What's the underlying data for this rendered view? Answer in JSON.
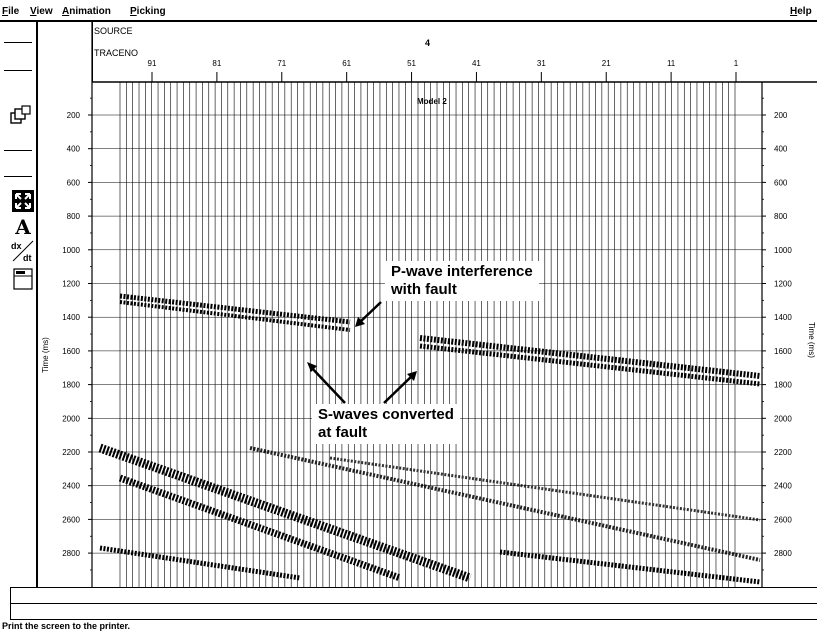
{
  "menu": {
    "left": [
      {
        "label": "File",
        "mnemonic": "F",
        "rest": "ile"
      },
      {
        "label": "View",
        "mnemonic": "V",
        "rest": "iew"
      },
      {
        "label": "Animation",
        "mnemonic": "A",
        "rest": "nimation"
      },
      {
        "label": "Picking",
        "mnemonic": "P",
        "rest": "icking"
      }
    ],
    "right": {
      "label": "Help",
      "mnemonic": "H",
      "rest": "elp"
    }
  },
  "toolbox": {
    "icons": [
      {
        "name": "window-stack-icon",
        "glyph": "⧉"
      },
      {
        "name": "zoom-fit-icon",
        "glyph": "⤢"
      },
      {
        "name": "annotate-text-icon",
        "glyph": "A"
      },
      {
        "name": "derivative-dxdt-icon",
        "glyph": "dx/dt"
      },
      {
        "name": "print-screen-icon",
        "glyph": "▣"
      }
    ]
  },
  "header": {
    "source_label": "SOURCE",
    "source_value": "4",
    "traceno_label": "TRACENO",
    "traceno_ticks": [
      "91",
      "81",
      "71",
      "61",
      "51",
      "41",
      "31",
      "21",
      "11",
      "1"
    ]
  },
  "plot": {
    "model_label": "Model 2",
    "y_axis_label": "Time (ms)",
    "y_ticks": [
      "200",
      "400",
      "600",
      "800",
      "1000",
      "1200",
      "1400",
      "1600",
      "1800",
      "2000",
      "2200",
      "2400",
      "2600",
      "2800"
    ],
    "callouts": [
      {
        "id": "p-wave",
        "lines": [
          "P-wave interference",
          "with fault"
        ]
      },
      {
        "id": "s-waves",
        "lines": [
          "S-waves converted",
          "at fault"
        ]
      }
    ]
  },
  "status_text": "Print the screen to the printer."
}
